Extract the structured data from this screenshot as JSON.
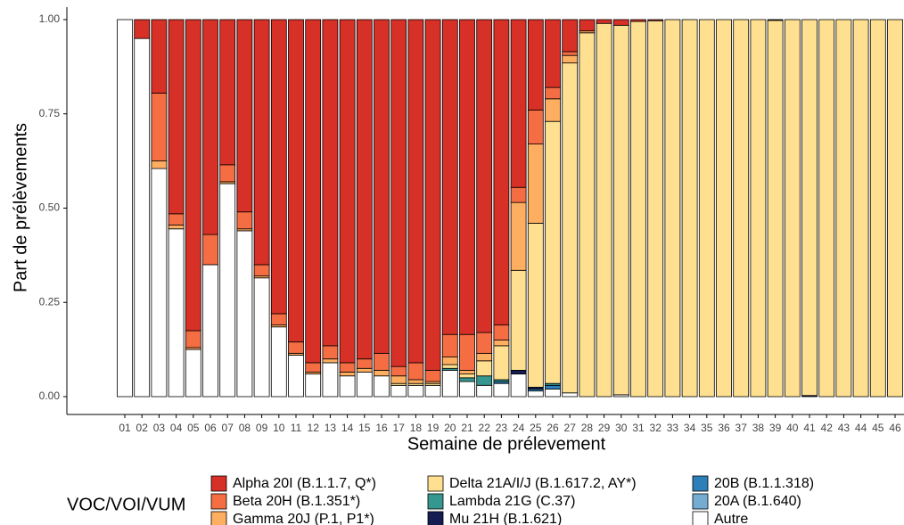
{
  "chart_data": {
    "type": "stacked-bar",
    "y_label": "Part de prélèvements",
    "x_label": "Semaine de prélevement",
    "legend_title": "VOC/VOI/VUM",
    "categories": [
      "01",
      "02",
      "03",
      "04",
      "05",
      "06",
      "07",
      "08",
      "09",
      "10",
      "11",
      "12",
      "13",
      "14",
      "15",
      "16",
      "17",
      "18",
      "19",
      "20",
      "21",
      "22",
      "23",
      "24",
      "25",
      "26",
      "27",
      "28",
      "29",
      "30",
      "31",
      "32",
      "33",
      "34",
      "35",
      "36",
      "37",
      "38",
      "39",
      "40",
      "41",
      "42",
      "43",
      "44",
      "45",
      "46"
    ],
    "ylim": [
      0,
      1
    ],
    "yticks": [
      {
        "value": 0,
        "label": "0.00"
      },
      {
        "value": 0.25,
        "label": "0.25"
      },
      {
        "value": 0.5,
        "label": "0.50"
      },
      {
        "value": 0.75,
        "label": "0.75"
      },
      {
        "value": 1,
        "label": "1.00"
      }
    ],
    "series": [
      {
        "name": "Alpha 20I (B.1.1.7, Q*)",
        "color": "#d73027",
        "values": [
          0,
          0.05,
          0.195,
          0.515,
          0.825,
          0.57,
          0.385,
          0.51,
          0.65,
          0.78,
          0.855,
          0.91,
          0.865,
          0.91,
          0.9,
          0.885,
          0.92,
          0.91,
          0.93,
          0.835,
          0.835,
          0.83,
          0.81,
          0.445,
          0.24,
          0.18,
          0.085,
          0.03,
          0.01,
          0.015,
          0.005,
          0.003,
          0,
          0,
          0,
          0,
          0,
          0,
          0.002,
          0,
          0,
          0,
          0,
          0,
          0,
          0
        ]
      },
      {
        "name": "Beta 20H (B.1.351*)",
        "color": "#f46d43",
        "values": [
          0,
          0,
          0.18,
          0.03,
          0.045,
          0.08,
          0.045,
          0.045,
          0.03,
          0.03,
          0.03,
          0.025,
          0.035,
          0.025,
          0.025,
          0.045,
          0.025,
          0.045,
          0.03,
          0.06,
          0.095,
          0.055,
          0.04,
          0.04,
          0.09,
          0.03,
          0.01,
          0,
          0,
          0,
          0,
          0,
          0,
          0,
          0,
          0,
          0,
          0,
          0,
          0,
          0,
          0,
          0,
          0,
          0,
          0
        ]
      },
      {
        "name": "Gamma 20J (P.1, P1*)",
        "color": "#fdae61",
        "values": [
          0,
          0,
          0.02,
          0.01,
          0.005,
          0,
          0.005,
          0.005,
          0.005,
          0.005,
          0.005,
          0.005,
          0.01,
          0.01,
          0.01,
          0.015,
          0.02,
          0.01,
          0.005,
          0.02,
          0.01,
          0.02,
          0.015,
          0.18,
          0.21,
          0.06,
          0.02,
          0.005,
          0,
          0,
          0,
          0,
          0,
          0,
          0,
          0,
          0,
          0,
          0,
          0,
          0,
          0,
          0,
          0,
          0,
          0
        ]
      },
      {
        "name": "Delta 21A/I/J (B.1.617.2, AY*)",
        "color": "#fee090",
        "values": [
          0,
          0,
          0,
          0,
          0,
          0,
          0,
          0,
          0,
          0,
          0,
          0,
          0,
          0,
          0,
          0,
          0.005,
          0.005,
          0.005,
          0.01,
          0.01,
          0.04,
          0.09,
          0.265,
          0.435,
          0.695,
          0.875,
          0.965,
          0.99,
          0.98,
          0.995,
          0.997,
          1,
          1,
          1,
          1,
          1,
          1,
          0.998,
          1,
          0.997,
          1,
          1,
          1,
          1,
          1
        ]
      },
      {
        "name": "Lambda 21G (C.37)",
        "color": "#35978f",
        "values": [
          0,
          0,
          0,
          0,
          0,
          0,
          0,
          0,
          0,
          0,
          0,
          0,
          0,
          0,
          0,
          0,
          0,
          0,
          0,
          0.005,
          0.01,
          0.025,
          0.005,
          0,
          0,
          0.005,
          0,
          0,
          0,
          0,
          0,
          0,
          0,
          0,
          0,
          0,
          0,
          0,
          0,
          0,
          0,
          0,
          0,
          0,
          0,
          0
        ]
      },
      {
        "name": "Mu 21H (B.1.621)",
        "color": "#141c52",
        "values": [
          0,
          0,
          0,
          0,
          0,
          0,
          0,
          0,
          0,
          0,
          0,
          0,
          0,
          0,
          0,
          0,
          0,
          0,
          0,
          0,
          0,
          0,
          0,
          0.01,
          0.005,
          0,
          0,
          0,
          0,
          0,
          0,
          0,
          0,
          0,
          0,
          0,
          0,
          0,
          0,
          0,
          0.003,
          0,
          0,
          0,
          0,
          0
        ]
      },
      {
        "name": "20B (B.1.1.318)",
        "color": "#2c7fb8",
        "values": [
          0,
          0,
          0,
          0,
          0,
          0,
          0,
          0,
          0,
          0,
          0,
          0,
          0,
          0,
          0,
          0,
          0,
          0,
          0,
          0,
          0,
          0,
          0.005,
          0,
          0.005,
          0.01,
          0,
          0,
          0,
          0,
          0,
          0,
          0,
          0,
          0,
          0,
          0,
          0,
          0,
          0,
          0,
          0,
          0,
          0,
          0,
          0
        ]
      },
      {
        "name": "20A (B.1.640)",
        "color": "#74add1",
        "values": [
          0,
          0,
          0,
          0,
          0,
          0,
          0,
          0,
          0,
          0,
          0,
          0,
          0,
          0,
          0,
          0,
          0,
          0,
          0,
          0,
          0,
          0,
          0,
          0,
          0,
          0,
          0,
          0,
          0,
          0,
          0,
          0,
          0,
          0,
          0,
          0,
          0,
          0,
          0,
          0,
          0,
          0,
          0,
          0,
          0,
          0
        ]
      },
      {
        "name": "Autre",
        "color": "#ffffff",
        "values": [
          1,
          0.95,
          0.605,
          0.445,
          0.125,
          0.35,
          0.565,
          0.44,
          0.315,
          0.185,
          0.11,
          0.06,
          0.09,
          0.055,
          0.065,
          0.055,
          0.03,
          0.03,
          0.03,
          0.07,
          0.04,
          0.03,
          0.035,
          0.06,
          0.015,
          0.02,
          0.01,
          0,
          0,
          0.005,
          0,
          0,
          0,
          0,
          0,
          0,
          0,
          0,
          0,
          0,
          0,
          0,
          0,
          0,
          0,
          0
        ]
      }
    ]
  }
}
